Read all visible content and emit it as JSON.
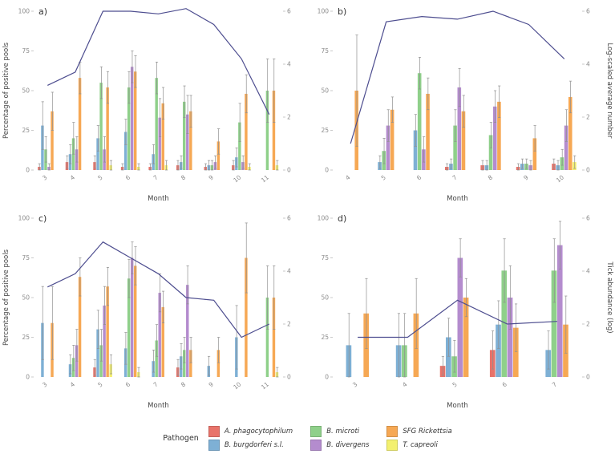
{
  "legend": {
    "title": "Pathogen",
    "items": [
      {
        "label": "A. phagocytophilum",
        "color": "#e8736a"
      },
      {
        "label": "B. burgdorferi s.l.",
        "color": "#7eb0d5"
      },
      {
        "label": "B. microti",
        "color": "#8fd08a"
      },
      {
        "label": "B. divergens",
        "color": "#b48cce"
      },
      {
        "label": "SFG Rickettsia",
        "color": "#f6a854"
      },
      {
        "label": "T. capreoli",
        "color": "#f3f06f"
      }
    ]
  },
  "style": {
    "line_color": "#4d4d8f",
    "error_color": "#8f8f8f",
    "axis_text": "#8a8a8a",
    "axis_title": "#444444"
  },
  "chart_data": [
    {
      "type": "bar",
      "panel_label": "a)",
      "categories": [
        "3",
        "4",
        "5",
        "6",
        "7",
        "8",
        "9",
        "10",
        "11"
      ],
      "xlabel": "Month",
      "ylabel_left": "Percentage of positive pools",
      "ylabel_right": "",
      "ylim_left": [
        0,
        100
      ],
      "ylim_right": [
        0,
        6
      ],
      "left_ticks": [
        0,
        25,
        50,
        75,
        100
      ],
      "right_ticks": [
        0,
        2,
        4,
        6
      ],
      "series": [
        {
          "name": "A. phagocytophilum",
          "values": [
            2,
            5,
            5,
            2,
            2,
            3,
            2,
            3,
            0
          ],
          "errors": [
            2,
            4,
            4,
            2,
            2,
            3,
            2,
            3,
            0
          ]
        },
        {
          "name": "B. burgdorferi s.l.",
          "values": [
            28,
            10,
            20,
            24,
            10,
            5,
            3,
            8,
            0
          ],
          "errors": [
            15,
            6,
            8,
            8,
            6,
            4,
            3,
            6,
            0
          ]
        },
        {
          "name": "B. microti",
          "values": [
            13,
            20,
            55,
            52,
            58,
            43,
            3,
            30,
            50
          ],
          "errors": [
            8,
            10,
            10,
            10,
            10,
            10,
            3,
            12,
            20
          ]
        },
        {
          "name": "B. divergens",
          "values": [
            2,
            13,
            13,
            65,
            33,
            35,
            5,
            5,
            0
          ],
          "errors": [
            2,
            8,
            8,
            10,
            12,
            12,
            4,
            4,
            0
          ]
        },
        {
          "name": "SFG Rickettsia",
          "values": [
            37,
            58,
            52,
            62,
            42,
            37,
            18,
            48,
            50
          ],
          "errors": [
            12,
            10,
            10,
            10,
            10,
            10,
            8,
            12,
            20
          ]
        },
        {
          "name": "T. capreoli",
          "values": [
            0,
            0,
            3,
            2,
            3,
            0,
            0,
            2,
            3
          ],
          "errors": [
            0,
            0,
            3,
            2,
            3,
            0,
            0,
            2,
            3
          ]
        }
      ],
      "line": {
        "values": [
          3.2,
          3.7,
          6.0,
          6.0,
          5.9,
          6.1,
          5.5,
          4.2,
          2.1
        ]
      }
    },
    {
      "type": "bar",
      "panel_label": "b)",
      "categories": [
        "4",
        "5",
        "6",
        "7",
        "8",
        "9",
        "10"
      ],
      "xlabel": "Month",
      "ylabel_left": "",
      "ylabel_right": "Log-scaled average number",
      "ylim_left": [
        0,
        100
      ],
      "ylim_right": [
        0,
        6
      ],
      "left_ticks": [
        0,
        25,
        50,
        75,
        100
      ],
      "right_ticks": [
        0,
        2,
        4,
        6
      ],
      "series": [
        {
          "name": "A. phagocytophilum",
          "values": [
            0,
            0,
            0,
            2,
            3,
            2,
            4
          ],
          "errors": [
            0,
            0,
            0,
            2,
            3,
            2,
            3
          ]
        },
        {
          "name": "B. burgdorferi s.l.",
          "values": [
            0,
            5,
            25,
            4,
            3,
            4,
            3
          ],
          "errors": [
            0,
            4,
            10,
            3,
            3,
            3,
            3
          ]
        },
        {
          "name": "B. microti",
          "values": [
            0,
            12,
            61,
            28,
            22,
            4,
            8
          ],
          "errors": [
            0,
            8,
            10,
            10,
            8,
            3,
            5
          ]
        },
        {
          "name": "B. divergens",
          "values": [
            0,
            28,
            13,
            52,
            40,
            3,
            28
          ],
          "errors": [
            0,
            10,
            8,
            12,
            10,
            3,
            10
          ]
        },
        {
          "name": "SFG Rickettsia",
          "values": [
            50,
            38,
            48,
            37,
            43,
            20,
            46
          ],
          "errors": [
            35,
            8,
            10,
            10,
            10,
            8,
            10
          ]
        },
        {
          "name": "T. capreoli",
          "values": [
            0,
            0,
            0,
            0,
            0,
            0,
            5
          ],
          "errors": [
            0,
            0,
            0,
            0,
            0,
            0,
            4
          ]
        }
      ],
      "line": {
        "values": [
          1.0,
          5.6,
          5.8,
          5.7,
          6.0,
          5.5,
          4.2
        ]
      }
    },
    {
      "type": "bar",
      "panel_label": "c)",
      "categories": [
        "3",
        "4",
        "5",
        "6",
        "7",
        "8",
        "9",
        "10",
        "11"
      ],
      "xlabel": "Month",
      "ylabel_left": "Percentage of positive pools",
      "ylabel_right": "",
      "ylim_left": [
        0,
        100
      ],
      "ylim_right": [
        0,
        6
      ],
      "left_ticks": [
        0,
        25,
        50,
        75,
        100
      ],
      "right_ticks": [
        0,
        2,
        4,
        6
      ],
      "series": [
        {
          "name": "A. phagocytophilum",
          "values": [
            0,
            0,
            6,
            0,
            0,
            6,
            0,
            0,
            0
          ],
          "errors": [
            0,
            0,
            5,
            0,
            0,
            5,
            0,
            0,
            0
          ]
        },
        {
          "name": "B. burgdorferi s.l.",
          "values": [
            34,
            8,
            30,
            18,
            10,
            13,
            7,
            25,
            0
          ],
          "errors": [
            23,
            6,
            12,
            10,
            7,
            8,
            6,
            20,
            0
          ]
        },
        {
          "name": "B. microti",
          "values": [
            0,
            12,
            20,
            62,
            23,
            17,
            0,
            0,
            50
          ],
          "errors": [
            0,
            8,
            10,
            12,
            10,
            8,
            0,
            0,
            20
          ]
        },
        {
          "name": "B. divergens",
          "values": [
            0,
            20,
            45,
            75,
            53,
            58,
            0,
            0,
            0
          ],
          "errors": [
            0,
            10,
            12,
            10,
            12,
            12,
            0,
            0,
            0
          ]
        },
        {
          "name": "SFG Rickettsia",
          "values": [
            34,
            63,
            57,
            70,
            44,
            17,
            17,
            75,
            50
          ],
          "errors": [
            23,
            12,
            12,
            12,
            10,
            8,
            8,
            22,
            20
          ]
        },
        {
          "name": "T. capreoli",
          "values": [
            0,
            0,
            8,
            3,
            0,
            0,
            0,
            0,
            3
          ],
          "errors": [
            0,
            0,
            6,
            3,
            0,
            0,
            0,
            0,
            3
          ]
        }
      ],
      "line": {
        "values": [
          3.4,
          3.9,
          5.1,
          4.5,
          3.9,
          3.0,
          2.9,
          1.5,
          2.0
        ]
      }
    },
    {
      "type": "bar",
      "panel_label": "d)",
      "categories": [
        "3",
        "4",
        "5",
        "6",
        "7"
      ],
      "xlabel": "Month",
      "ylabel_left": "",
      "ylabel_right": "Tick abundance (log)",
      "ylim_left": [
        0,
        100
      ],
      "ylim_right": [
        0,
        6
      ],
      "left_ticks": [
        0,
        25,
        50,
        75,
        100
      ],
      "right_ticks": [
        0,
        2,
        4,
        6
      ],
      "series": [
        {
          "name": "A. phagocytophilum",
          "values": [
            0,
            0,
            7,
            17,
            0
          ],
          "errors": [
            0,
            0,
            6,
            12,
            0
          ]
        },
        {
          "name": "B. burgdorferi s.l.",
          "values": [
            20,
            20,
            25,
            33,
            17
          ],
          "errors": [
            20,
            20,
            12,
            15,
            12
          ]
        },
        {
          "name": "B. microti",
          "values": [
            0,
            20,
            13,
            67,
            67
          ],
          "errors": [
            0,
            20,
            10,
            20,
            20
          ]
        },
        {
          "name": "B. divergens",
          "values": [
            0,
            0,
            75,
            50,
            83
          ],
          "errors": [
            0,
            0,
            12,
            20,
            15
          ]
        },
        {
          "name": "SFG Rickettsia",
          "values": [
            40,
            40,
            50,
            31,
            33
          ],
          "errors": [
            22,
            22,
            12,
            15,
            18
          ]
        },
        {
          "name": "T. capreoli",
          "values": [
            0,
            0,
            0,
            0,
            0
          ],
          "errors": [
            0,
            0,
            0,
            0,
            0
          ]
        }
      ],
      "line": {
        "values": [
          1.5,
          1.5,
          2.9,
          2.0,
          2.1
        ]
      }
    }
  ]
}
